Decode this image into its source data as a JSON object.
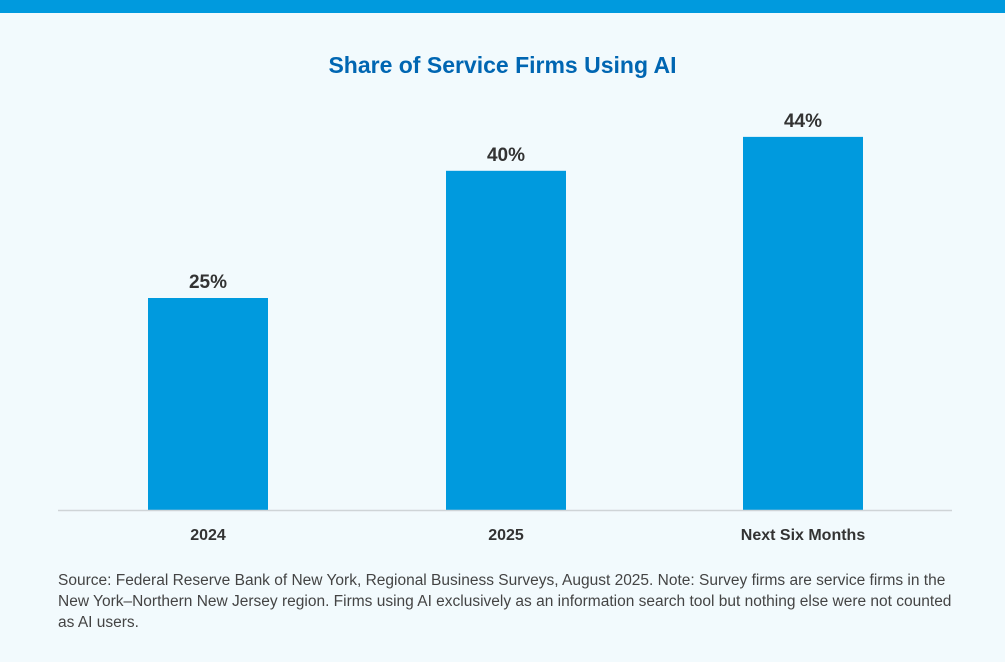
{
  "chart_data": {
    "type": "bar",
    "title": "Share of Service Firms Using AI",
    "categories": [
      "2024",
      "2025",
      "Next Six Months"
    ],
    "values": [
      25,
      40,
      44
    ],
    "data_labels": [
      "25%",
      "40%",
      "44%"
    ],
    "xlabel": "",
    "ylabel": "",
    "ylim": [
      0,
      60
    ],
    "grid": false,
    "bar_color": "#009ade",
    "title_color": "#0066b2"
  },
  "note": "Source: Federal Reserve Bank of New York, Regional Business Surveys, August 2025. Note: Survey firms are service firms in the New York–Northern New Jersey region. Firms using AI exclusively as an information search tool but nothing else were not counted as AI users."
}
